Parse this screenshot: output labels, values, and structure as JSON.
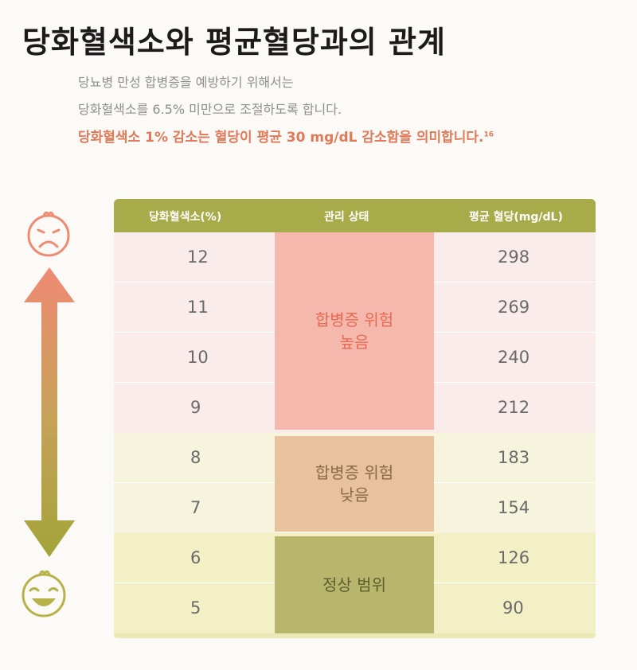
{
  "title": "당화혈색소와 평균혈당과의 관계",
  "subtitle_lines": [
    "당뇨병 만성 합병증을 예방하기 위해서는",
    "당화혈색소를 6.5% 미만으로 조절하도록 합니다."
  ],
  "highlight": {
    "text": "당화혈색소 1% 감소는 혈당이 평균 30 mg/dL 감소함을 의미합니다.",
    "footnote": "16"
  },
  "table": {
    "headers": [
      "당화혈색소(%)",
      "관리 상태",
      "평균 혈당(mg/dL)"
    ],
    "rows": [
      {
        "a1c": "12",
        "glucose": "298"
      },
      {
        "a1c": "11",
        "glucose": "269"
      },
      {
        "a1c": "10",
        "glucose": "240"
      },
      {
        "a1c": "9",
        "glucose": "212"
      },
      {
        "a1c": "8",
        "glucose": "183"
      },
      {
        "a1c": "7",
        "glucose": "154"
      },
      {
        "a1c": "6",
        "glucose": "126"
      },
      {
        "a1c": "5",
        "glucose": "90"
      }
    ],
    "status_groups": [
      {
        "line1": "합병증 위험",
        "line2": "높음",
        "color": "#e86a54"
      },
      {
        "line1": "합병증 위험",
        "line2": "낮음",
        "color": "#8b6a47"
      },
      {
        "line1": "정상 범위",
        "line2": "",
        "color": "#5d5e2c"
      }
    ]
  },
  "colors": {
    "header": "#a7ab4a",
    "high_risk": "#f5b8ad",
    "low_risk": "#e7c29c",
    "normal": "#b7b66c",
    "arrow_top": "#ef8a73",
    "arrow_bottom": "#a3a33a"
  },
  "icons": {
    "top": "sad-face-icon",
    "bottom": "happy-face-icon",
    "arrow": "double-arrow-icon"
  }
}
